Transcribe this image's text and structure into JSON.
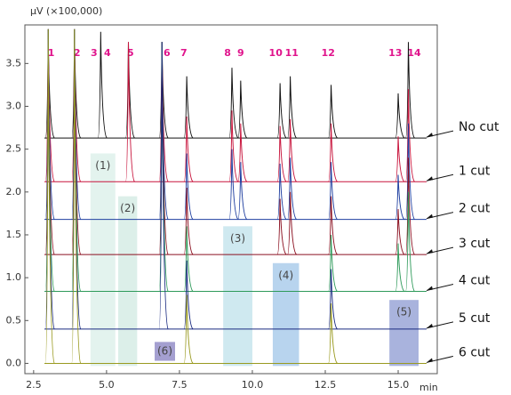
{
  "chart_data": {
    "type": "chromatogram",
    "ylabel": "μV (×100,000)",
    "xlabel": "min",
    "xlim": [
      2.2,
      16.34
    ],
    "ylim": [
      -0.12,
      3.95
    ],
    "xticks": [
      2.5,
      {
        "value": 5,
        "label": "5.0"
      },
      {
        "value": 7.5,
        "label": "7.5"
      },
      {
        "value": 10,
        "label": "10.0"
      },
      12.5,
      {
        "value": 15,
        "label": "15.0"
      }
    ],
    "yticks": [
      {
        "value": 0,
        "label": "0.0"
      },
      0.5,
      {
        "value": 1,
        "label": "1.0"
      },
      1.5,
      {
        "value": 2,
        "label": "2.0"
      },
      2.5,
      {
        "value": 3,
        "label": "3.0"
      },
      3.5
    ],
    "peak_labels": [
      "1",
      "2",
      "3",
      "4",
      "5",
      "6",
      "7",
      "8",
      "9",
      "10",
      "11",
      "12",
      "13",
      "14"
    ],
    "peak_label_x": [
      3.1,
      3.99,
      4.57,
      5.03,
      5.82,
      7.07,
      7.65,
      9.15,
      9.6,
      10.8,
      11.35,
      12.6,
      14.9,
      15.55
    ],
    "series": [
      {
        "name": "No cut",
        "color": "#111111",
        "baseline": 2.63,
        "x": [
          3.0,
          3.9,
          4.8,
          5.75,
          6.9,
          7.75,
          9.3,
          9.6,
          10.95,
          11.3,
          12.7,
          15.0,
          15.35
        ],
        "values": [
          3.8,
          3.85,
          3.87,
          3.75,
          3.75,
          3.35,
          3.45,
          3.3,
          3.27,
          3.35,
          3.25,
          3.15,
          3.75
        ]
      },
      {
        "name": "1 cut",
        "color": "#c8143c",
        "baseline": 2.12,
        "x": [
          3.0,
          3.9,
          5.75,
          6.9,
          7.75,
          9.3,
          9.6,
          10.95,
          11.3,
          12.7,
          15.0,
          15.35
        ],
        "values": [
          3.9,
          3.9,
          3.75,
          3.75,
          2.88,
          2.95,
          2.8,
          2.77,
          2.85,
          2.8,
          2.65,
          3.2
        ]
      },
      {
        "name": "2 cut",
        "color": "#1f3fa0",
        "baseline": 1.68,
        "x": [
          3.0,
          3.9,
          6.9,
          7.75,
          9.3,
          9.6,
          10.95,
          11.3,
          12.7,
          15.0,
          15.35
        ],
        "values": [
          3.9,
          3.9,
          3.75,
          2.45,
          2.5,
          2.35,
          2.33,
          2.4,
          2.35,
          2.2,
          2.8
        ]
      },
      {
        "name": "3 cut",
        "color": "#8b1020",
        "baseline": 1.27,
        "x": [
          3.0,
          3.9,
          6.9,
          7.75,
          10.95,
          11.3,
          12.7,
          15.0,
          15.35
        ],
        "values": [
          3.9,
          3.9,
          3.75,
          2.05,
          1.92,
          2.0,
          1.95,
          1.8,
          2.4
        ]
      },
      {
        "name": "4 cut",
        "color": "#2e9a5a",
        "baseline": 0.84,
        "x": [
          3.0,
          3.9,
          6.9,
          7.75,
          12.7,
          15.0,
          15.35
        ],
        "values": [
          3.9,
          3.9,
          3.75,
          1.6,
          1.5,
          1.4,
          2.0
        ]
      },
      {
        "name": "5 cut",
        "color": "#1a2a80",
        "baseline": 0.4,
        "x": [
          3.0,
          3.9,
          6.9,
          7.75,
          12.7
        ],
        "values": [
          3.9,
          3.9,
          3.75,
          1.2,
          1.1
        ]
      },
      {
        "name": "6 cut",
        "color": "#9a9a20",
        "baseline": 0.0,
        "x": [
          3.0,
          3.9,
          7.75,
          12.7
        ],
        "values": [
          3.9,
          3.9,
          0.8,
          0.7
        ]
      }
    ],
    "cuts": [
      {
        "label": "(1)",
        "color": "#e3f3ee",
        "x": [
          4.45,
          5.3
        ],
        "y": [
          -0.03,
          2.45
        ]
      },
      {
        "label": "(2)",
        "color": "#dcefe9",
        "x": [
          5.4,
          6.05
        ],
        "y": [
          -0.03,
          1.95
        ]
      },
      {
        "label": "(3)",
        "color": "#cfe9f0",
        "x": [
          9.0,
          10.0
        ],
        "y": [
          -0.03,
          1.6
        ]
      },
      {
        "label": "(4)",
        "color": "#b8d4ee",
        "x": [
          10.7,
          11.6
        ],
        "y": [
          -0.03,
          1.17
        ]
      },
      {
        "label": "(5)",
        "color": "#a9b3dd",
        "x": [
          14.7,
          15.7
        ],
        "y": [
          -0.03,
          0.74
        ]
      },
      {
        "label": "(6)",
        "color": "#a49fd0",
        "x": [
          6.65,
          7.35
        ],
        "y": [
          0.03,
          0.25
        ]
      }
    ]
  }
}
